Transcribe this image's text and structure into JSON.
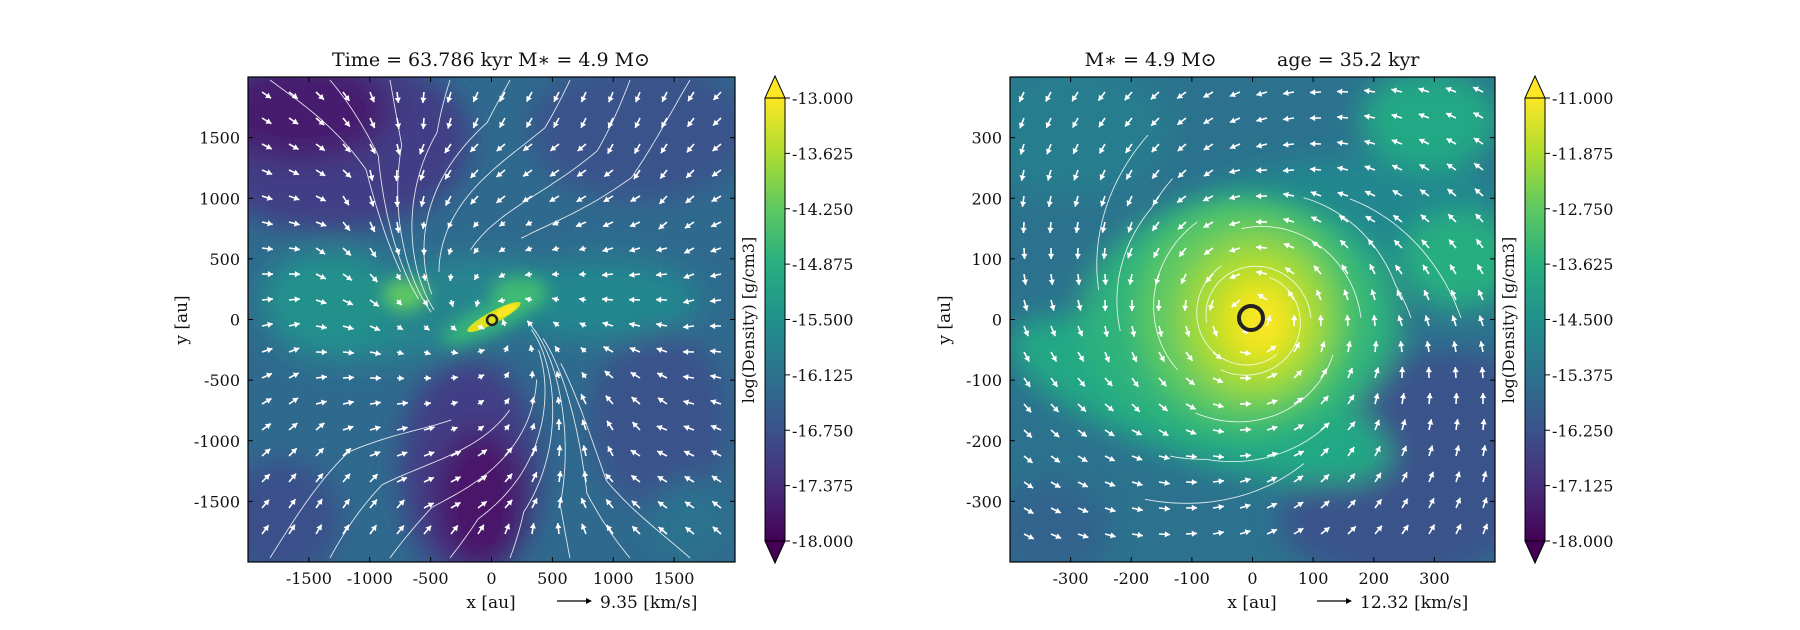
{
  "chart_data": [
    {
      "type": "heatmap",
      "title": "Time = 63.786 kyr    M∗ = 4.9 M⊙",
      "xlabel": "x [au]",
      "ylabel": "y [au]",
      "xlim": [
        -2000,
        2000
      ],
      "ylim": [
        -2000,
        2000
      ],
      "xticks": [
        -1500,
        -1000,
        -500,
        0,
        500,
        1000,
        1500
      ],
      "yticks": [
        -1500,
        -1000,
        -500,
        0,
        500,
        1000,
        1500
      ],
      "xtick_labels": [
        "-1500",
        "-1000",
        "-500",
        "0",
        "500",
        "1000",
        "1500"
      ],
      "ytick_labels": [
        "-1500",
        "-1000",
        "-500",
        "0",
        "500",
        "1000",
        "1500"
      ],
      "colorbar": {
        "label": "log(Density) [g/cm3]",
        "min": -18.0,
        "max": -13.0,
        "ticks": [
          "-13.000",
          "-13.625",
          "-14.250",
          "-14.875",
          "-15.500",
          "-16.125",
          "-16.750",
          "-17.375",
          "-18.000"
        ],
        "colormap": "viridis",
        "extend": "both"
      },
      "velocity_key": {
        "label": "9.35 [km/s]",
        "value": 9.35
      },
      "sink": {
        "x": 0,
        "y": 0,
        "label": ""
      },
      "overlay": "velocity arrows and streamlines (white)",
      "structure": "dense filament/disk through origin oriented to upper-right, low-density cavities upper-left and lower-center"
    },
    {
      "type": "heatmap",
      "title": "M∗ = 4.9 M⊙          age = 35.2 kyr",
      "xlabel": "x [au]",
      "ylabel": "y [au]",
      "xlim": [
        -400,
        400
      ],
      "ylim": [
        -400,
        400
      ],
      "xticks": [
        -300,
        -200,
        -100,
        0,
        100,
        200,
        300
      ],
      "yticks": [
        -300,
        -200,
        -100,
        0,
        100,
        200,
        300
      ],
      "xtick_labels": [
        "-300",
        "-200",
        "-100",
        "0",
        "100",
        "200",
        "300"
      ],
      "ytick_labels": [
        "-300",
        "-200",
        "-100",
        "0",
        "100",
        "200",
        "300"
      ],
      "colorbar": {
        "label": "log(Density) [g/cm3]",
        "min": -18.0,
        "max": -11.0,
        "ticks": [
          "-11.000",
          "-11.875",
          "-12.750",
          "-13.625",
          "-14.500",
          "-15.375",
          "-16.250",
          "-17.125",
          "-18.000"
        ],
        "colormap": "viridis",
        "extend": "both"
      },
      "velocity_key": {
        "label": "12.32 [km/s]",
        "value": 12.32
      },
      "sink": {
        "x": 0,
        "y": 0,
        "label": ""
      },
      "overlay": "velocity arrows and streamlines (white), rotating flow",
      "structure": "dense rotating disk centered at origin with spiral arm extending lower-right"
    }
  ]
}
